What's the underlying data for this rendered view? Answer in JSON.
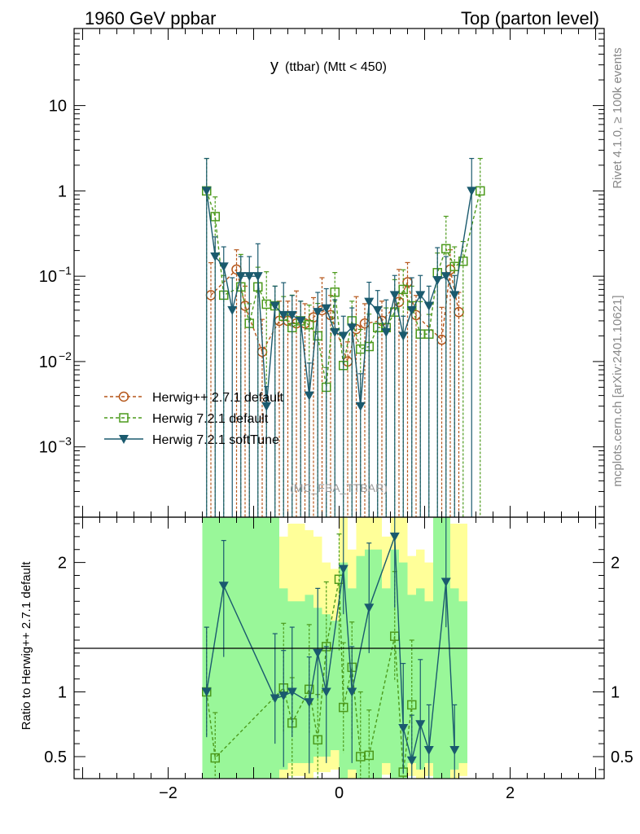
{
  "header": {
    "left": "1960 GeV ppbar",
    "right": "Top (parton level)"
  },
  "side": {
    "rivet": "Rivet 4.1.0, ≥ 100k events",
    "mcplots": "mcplots.cern.ch [arXiv:2401.10621]"
  },
  "colors": {
    "herwigpp": "#b5561a",
    "herwig721": "#4c9a1c",
    "softtune": "#1a5a6e",
    "band_inner": "#99f799",
    "band_outer": "#ffff99"
  },
  "chart_data": [
    {
      "type": "line",
      "title": "y (ttbar) (Mtt < 450)",
      "title_main": "y",
      "title_sub": "(ttbar) (Mtt < 450)",
      "watermark": "(MC_FBA_TTBAR)",
      "yscale": "log",
      "xlim": [
        -3.1,
        3.1
      ],
      "ylim": [
        0.00015,
        80
      ],
      "xticks": [
        -2,
        0,
        2
      ],
      "yticks": [
        {
          "value": 10,
          "label": "10"
        },
        {
          "value": 1,
          "label": "1"
        },
        {
          "value": 0.1,
          "label": "10",
          "exp": "−1"
        },
        {
          "value": 0.01,
          "label": "10",
          "exp": "−2"
        },
        {
          "value": 0.001,
          "label": "10",
          "exp": "−3"
        }
      ],
      "legend_position": "lower-left",
      "series": [
        {
          "name": "Herwig++ 2.7.1 default",
          "marker": "circle",
          "x": [
            -1.5,
            -1.2,
            -1.1,
            -0.9,
            -0.7,
            -0.6,
            -0.5,
            -0.4,
            -0.3,
            -0.2,
            -0.1,
            0.1,
            0.2,
            0.3,
            0.5,
            0.7,
            0.8,
            0.9,
            1.2,
            1.3,
            1.4
          ],
          "y": [
            0.06,
            0.12,
            0.045,
            0.013,
            0.03,
            0.03,
            0.028,
            0.028,
            0.033,
            0.04,
            0.035,
            0.01,
            0.024,
            0.028,
            0.03,
            0.05,
            0.085,
            0.035,
            0.018,
            0.12,
            0.038
          ]
        },
        {
          "name": "Herwig 7.2.1 default",
          "marker": "square",
          "x": [
            -1.55,
            -1.45,
            -1.35,
            -1.15,
            -1.05,
            -0.95,
            -0.85,
            -0.75,
            -0.65,
            -0.55,
            -0.45,
            -0.35,
            -0.25,
            -0.15,
            -0.05,
            0.05,
            0.15,
            0.25,
            0.35,
            0.45,
            0.55,
            0.65,
            0.75,
            0.85,
            0.95,
            1.05,
            1.15,
            1.25,
            1.35,
            1.45,
            1.65
          ],
          "y": [
            1.0,
            0.5,
            0.06,
            0.075,
            0.028,
            0.075,
            0.047,
            0.045,
            0.034,
            0.025,
            0.03,
            0.027,
            0.02,
            0.005,
            0.065,
            0.009,
            0.03,
            0.014,
            0.015,
            0.025,
            0.025,
            0.038,
            0.07,
            0.045,
            0.021,
            0.021,
            0.11,
            0.21,
            0.13,
            0.15,
            1.0
          ]
        },
        {
          "name": "Herwig 7.2.1 softTune",
          "marker": "triangle-down",
          "x": [
            -1.55,
            -1.45,
            -1.35,
            -1.25,
            -1.15,
            -1.05,
            -0.95,
            -0.85,
            -0.75,
            -0.65,
            -0.55,
            -0.45,
            -0.35,
            -0.25,
            -0.15,
            -0.05,
            0.05,
            0.15,
            0.25,
            0.35,
            0.45,
            0.55,
            0.65,
            0.75,
            0.85,
            0.95,
            1.05,
            1.15,
            1.25,
            1.35,
            1.55
          ],
          "y": [
            1.0,
            0.17,
            0.13,
            0.04,
            0.1,
            0.1,
            0.1,
            0.003,
            0.045,
            0.035,
            0.035,
            0.03,
            0.004,
            0.038,
            0.042,
            0.022,
            0.02,
            0.025,
            0.003,
            0.05,
            0.04,
            0.022,
            0.06,
            0.02,
            0.04,
            0.06,
            0.045,
            0.09,
            0.1,
            0.06,
            1.0
          ]
        }
      ]
    },
    {
      "type": "line",
      "title": "Ratio to Herwig++ 2.7.1 default",
      "ylabel": "Ratio to Herwig++ 2.7.1 default",
      "xlim": [
        -3.1,
        3.1
      ],
      "ylim": [
        0.33,
        2.35
      ],
      "xticks": [
        -2,
        0,
        2
      ],
      "yticks": [
        0.5,
        1,
        2
      ],
      "tick_labels_x": [
        "−2",
        "0",
        "2"
      ],
      "tick_labels_y": [
        "0.5",
        "1",
        "2"
      ],
      "reference_line": 1,
      "band": {
        "x_edges": [
          -1.6,
          -1.5,
          -1.4,
          -1.3,
          -1.2,
          -1.1,
          -1.0,
          -0.9,
          -0.8,
          -0.7,
          -0.6,
          -0.5,
          -0.4,
          -0.3,
          -0.2,
          -0.1,
          0.0,
          0.1,
          0.2,
          0.3,
          0.4,
          0.5,
          0.6,
          0.7,
          0.8,
          0.9,
          1.0,
          1.1,
          1.2,
          1.3,
          1.4,
          1.5
        ],
        "outer_top": [
          2.35,
          2.35,
          2.35,
          2.35,
          2.35,
          2.35,
          2.35,
          2.35,
          2.35,
          2.2,
          2.3,
          2.3,
          2.25,
          2.2,
          2.0,
          1.95,
          2.35,
          2.1,
          2.35,
          2.35,
          2.35,
          2.2,
          2.35,
          2.35,
          2.05,
          2.1,
          2.0,
          2.35,
          2.35,
          2.3,
          2.3
        ],
        "inner_top": [
          2.35,
          2.35,
          2.35,
          2.35,
          2.35,
          2.35,
          2.35,
          2.35,
          2.35,
          1.8,
          1.7,
          1.7,
          1.75,
          1.65,
          1.6,
          1.55,
          2.0,
          1.8,
          2.05,
          2.1,
          2.1,
          1.8,
          2.1,
          2.0,
          1.75,
          1.8,
          1.7,
          2.35,
          2.35,
          1.8,
          1.7
        ],
        "inner_bottom": [
          0.33,
          0.33,
          0.33,
          0.33,
          0.33,
          0.33,
          0.33,
          0.33,
          0.33,
          0.4,
          0.45,
          0.45,
          0.45,
          0.5,
          0.5,
          0.55,
          0.33,
          0.4,
          0.33,
          0.33,
          0.33,
          0.45,
          0.33,
          0.33,
          0.45,
          0.4,
          0.45,
          0.33,
          0.33,
          0.4,
          0.45
        ],
        "outer_bottom": [
          0.33,
          0.33,
          0.33,
          0.33,
          0.33,
          0.33,
          0.33,
          0.33,
          0.33,
          0.33,
          0.35,
          0.35,
          0.33,
          0.38,
          0.38,
          0.4,
          0.33,
          0.33,
          0.33,
          0.33,
          0.33,
          0.36,
          0.33,
          0.33,
          0.35,
          0.33,
          0.35,
          0.33,
          0.33,
          0.33,
          0.35
        ]
      },
      "series": [
        {
          "name": "Herwig 7.2.1 default",
          "marker": "square",
          "x": [
            -1.55,
            -1.45,
            -0.65,
            -0.55,
            -0.35,
            -0.25,
            -0.15,
            0.0,
            0.05,
            0.15,
            0.25,
            0.35,
            0.65,
            0.75,
            0.85
          ],
          "y": [
            1.0,
            0.49,
            1.03,
            0.76,
            1.02,
            0.63,
            1.35,
            1.87,
            0.88,
            1.19,
            0.5,
            0.51,
            1.43,
            0.38,
            0.9
          ]
        },
        {
          "name": "Herwig 7.2.1 softTune",
          "marker": "triangle-down",
          "x": [
            -1.55,
            -1.35,
            -0.75,
            -0.65,
            -0.55,
            -0.35,
            -0.25,
            -0.15,
            0.05,
            0.15,
            0.35,
            0.65,
            0.75,
            0.85,
            0.95,
            1.05,
            1.25,
            1.35
          ],
          "y": [
            1.0,
            1.82,
            0.95,
            0.97,
            1.0,
            0.92,
            1.3,
            1.0,
            1.95,
            1.0,
            1.65,
            2.2,
            0.72,
            0.47,
            0.75,
            0.55,
            1.85,
            0.55
          ]
        }
      ]
    }
  ]
}
